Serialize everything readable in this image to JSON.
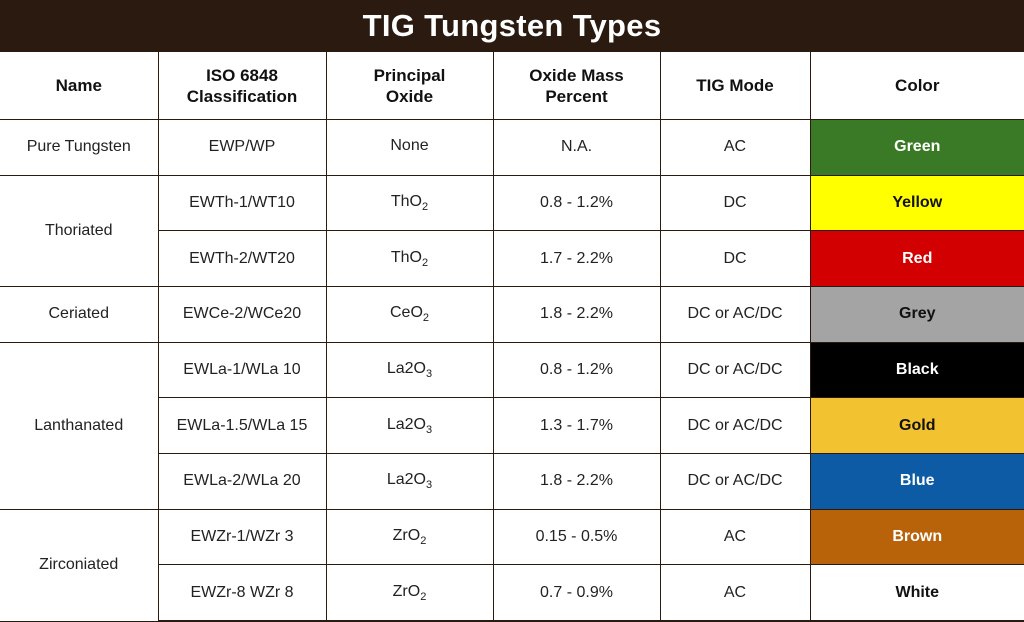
{
  "title": "TIG Tungsten Types",
  "headers": {
    "name": "Name",
    "iso_line1": "ISO 6848",
    "iso_line2": "Classification",
    "oxide_line1": "Principal",
    "oxide_line2": "Oxide",
    "mass_line1": "Oxide Mass",
    "mass_line2": "Percent",
    "mode": "TIG Mode",
    "color": "Color"
  },
  "groups": [
    {
      "name": "Pure Tungsten"
    },
    {
      "name": "Thoriated"
    },
    {
      "name": "Ceriated"
    },
    {
      "name": "Lanthanated"
    },
    {
      "name": "Zirconiated"
    }
  ],
  "rows": [
    {
      "iso": "EWP/WP",
      "oxide_base": "None",
      "oxide_sub": "",
      "mass": "N.A.",
      "mode": "AC",
      "color": "Green",
      "bg": "#3a7a26",
      "fg": "#ffffff"
    },
    {
      "iso": "EWTh-1/WT10",
      "oxide_base": "ThO",
      "oxide_sub": "2",
      "mass": "0.8 - 1.2%",
      "mode": "DC",
      "color": "Yellow",
      "bg": "#ffff00",
      "fg": "#111111"
    },
    {
      "iso": "EWTh-2/WT20",
      "oxide_base": "ThO",
      "oxide_sub": "2",
      "mass": "1.7 - 2.2%",
      "mode": "DC",
      "color": "Red",
      "bg": "#d20000",
      "fg": "#ffffff"
    },
    {
      "iso": "EWCe-2/WCe20",
      "oxide_base": "CeO",
      "oxide_sub": "2",
      "mass": "1.8 - 2.2%",
      "mode": "DC or AC/DC",
      "color": "Grey",
      "bg": "#a4a4a4",
      "fg": "#111111"
    },
    {
      "iso": "EWLa-1/WLa 10",
      "oxide_base": "La2O",
      "oxide_sub": "3",
      "mass": "0.8 - 1.2%",
      "mode": "DC or AC/DC",
      "color": "Black",
      "bg": "#000000",
      "fg": "#ffffff"
    },
    {
      "iso": "EWLa-1.5/WLa 15",
      "oxide_base": "La2O",
      "oxide_sub": "3",
      "mass": "1.3 - 1.7%",
      "mode": "DC or AC/DC",
      "color": "Gold",
      "bg": "#f2c230",
      "fg": "#111111"
    },
    {
      "iso": "EWLa-2/WLa 20",
      "oxide_base": "La2O",
      "oxide_sub": "3",
      "mass": "1.8 - 2.2%",
      "mode": "DC or AC/DC",
      "color": "Blue",
      "bg": "#0d5aa5",
      "fg": "#ffffff"
    },
    {
      "iso": "EWZr-1/WZr 3",
      "oxide_base": "ZrO",
      "oxide_sub": "2",
      "mass": "0.15 - 0.5%",
      "mode": "AC",
      "color": "Brown",
      "bg": "#b8620a",
      "fg": "#ffffff"
    },
    {
      "iso": "EWZr-8 WZr 8",
      "oxide_base": "ZrO",
      "oxide_sub": "2",
      "mass": "0.7 - 0.9%",
      "mode": "AC",
      "color": "White",
      "bg": "#ffffff",
      "fg": "#111111"
    }
  ]
}
